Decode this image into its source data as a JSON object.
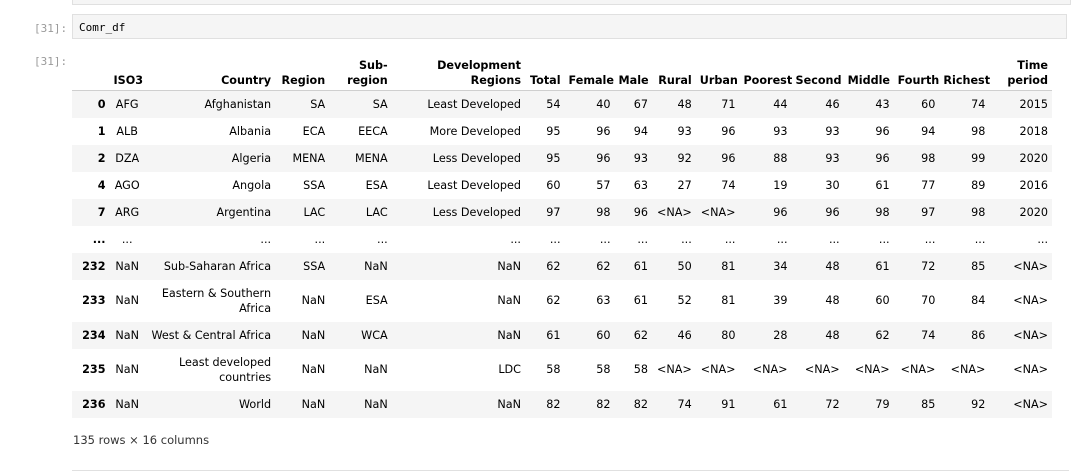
{
  "cell": {
    "input_prompt": "[31]:",
    "output_prompt": "[31]:",
    "code": "Comr_df"
  },
  "table": {
    "index_header": "",
    "columns": [
      "ISO3",
      "Country",
      "Region",
      "Sub-region",
      "Development Regions",
      "Total",
      "Female",
      "Male",
      "Rural",
      "Urban",
      "Poorest",
      "Second",
      "Middle",
      "Fourth",
      "Richest",
      "Time period"
    ],
    "rows": [
      {
        "idx": "0",
        "cells": [
          "AFG",
          "Afghanistan",
          "SA",
          "SA",
          "Least Developed",
          "54",
          "40",
          "67",
          "48",
          "71",
          "44",
          "46",
          "43",
          "60",
          "74",
          "2015"
        ]
      },
      {
        "idx": "1",
        "cells": [
          "ALB",
          "Albania",
          "ECA",
          "EECA",
          "More Developed",
          "95",
          "96",
          "94",
          "93",
          "96",
          "93",
          "93",
          "96",
          "94",
          "98",
          "2018"
        ]
      },
      {
        "idx": "2",
        "cells": [
          "DZA",
          "Algeria",
          "MENA",
          "MENA",
          "Less Developed",
          "95",
          "96",
          "93",
          "92",
          "96",
          "88",
          "93",
          "96",
          "98",
          "99",
          "2020"
        ]
      },
      {
        "idx": "4",
        "cells": [
          "AGO",
          "Angola",
          "SSA",
          "ESA",
          "Least Developed",
          "60",
          "57",
          "63",
          "27",
          "74",
          "19",
          "30",
          "61",
          "77",
          "89",
          "2016"
        ]
      },
      {
        "idx": "7",
        "cells": [
          "ARG",
          "Argentina",
          "LAC",
          "LAC",
          "Less Developed",
          "97",
          "98",
          "96",
          "<NA>",
          "<NA>",
          "96",
          "96",
          "98",
          "97",
          "98",
          "2020"
        ]
      },
      {
        "idx": "...",
        "cells": [
          "...",
          "...",
          "...",
          "...",
          "...",
          "...",
          "...",
          "...",
          "...",
          "...",
          "...",
          "...",
          "...",
          "...",
          "...",
          "..."
        ]
      },
      {
        "idx": "232",
        "cells": [
          "NaN",
          "Sub-Saharan Africa",
          "SSA",
          "NaN",
          "NaN",
          "62",
          "62",
          "61",
          "50",
          "81",
          "34",
          "48",
          "61",
          "72",
          "85",
          "<NA>"
        ]
      },
      {
        "idx": "233",
        "cells": [
          "NaN",
          "Eastern & Southern Africa",
          "NaN",
          "ESA",
          "NaN",
          "62",
          "63",
          "61",
          "52",
          "81",
          "39",
          "48",
          "60",
          "70",
          "84",
          "<NA>"
        ]
      },
      {
        "idx": "234",
        "cells": [
          "NaN",
          "West & Central Africa",
          "NaN",
          "WCA",
          "NaN",
          "61",
          "60",
          "62",
          "46",
          "80",
          "28",
          "48",
          "62",
          "74",
          "86",
          "<NA>"
        ]
      },
      {
        "idx": "235",
        "cells": [
          "NaN",
          "Least developed countries",
          "NaN",
          "NaN",
          "LDC",
          "58",
          "58",
          "58",
          "<NA>",
          "<NA>",
          "<NA>",
          "<NA>",
          "<NA>",
          "<NA>",
          "<NA>",
          "<NA>"
        ]
      },
      {
        "idx": "236",
        "cells": [
          "NaN",
          "World",
          "NaN",
          "NaN",
          "NaN",
          "82",
          "82",
          "82",
          "74",
          "91",
          "61",
          "72",
          "79",
          "85",
          "92",
          "<NA>"
        ]
      }
    ],
    "shape_note": "135 rows × 16 columns"
  }
}
